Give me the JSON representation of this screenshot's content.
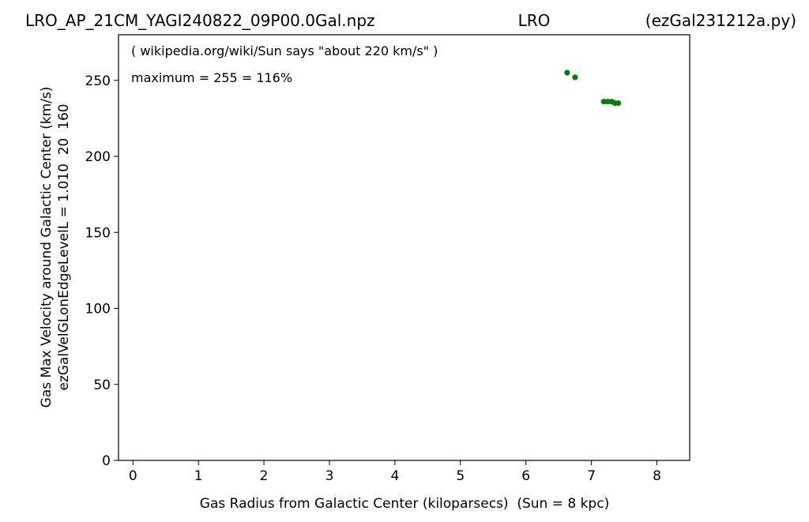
{
  "chart_data": {
    "type": "scatter",
    "title": [
      "LRO_AP_21CM_YAGI240822_09P00.0Gal.npz",
      "LRO",
      "(ezGal231212a.py)"
    ],
    "xlabel": "Gas Radius from Galactic Center (kiloparsecs)  (Sun = 8 kpc)",
    "ylabel": [
      "Gas Max Velocity around Galactic Center (km/s)",
      "ezGalVelGLonEdgeLevelL = 1.010  20  160"
    ],
    "annotations": [
      "( wikipedia.org/wiki/Sun says \"about 220 km/s\" )",
      "maximum = 255 = 116%"
    ],
    "series": [
      {
        "color": "#008000",
        "x": [
          6.63,
          6.75,
          7.19,
          7.25,
          7.31,
          7.36,
          7.41
        ],
        "values": [
          255,
          252,
          236,
          236,
          236,
          235,
          235
        ]
      }
    ],
    "xlim": [
      -0.22,
      8.5
    ],
    "xticks": [
      0,
      1,
      2,
      3,
      4,
      5,
      6,
      7,
      8
    ],
    "ylim": [
      0,
      280
    ],
    "yticks": [
      0,
      50,
      100,
      150,
      200,
      250
    ]
  }
}
